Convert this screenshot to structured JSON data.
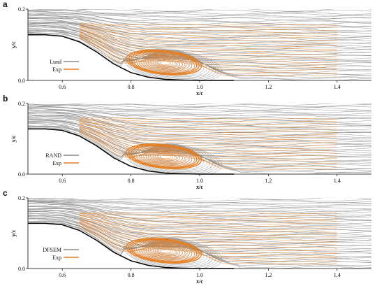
{
  "chart_data": [
    {
      "type": "line",
      "panel_label": "a",
      "xlabel": "x/c",
      "ylabel": "y/c",
      "xlim": [
        0.5,
        1.5
      ],
      "ylim": [
        0.0,
        0.2
      ],
      "xticks": [
        "0.6",
        "0.8",
        "1.0",
        "1.2",
        "1.4"
      ],
      "yticks": [
        "0.0",
        "0.2"
      ],
      "legend_position": "lower-left",
      "series": [
        {
          "name": "Lund",
          "color": "#8c8c8c"
        },
        {
          "name": "Exp",
          "color": "#e87d1e"
        }
      ],
      "hump_surface": {
        "x": [
          0.5,
          0.55,
          0.6,
          0.65,
          0.7,
          0.75,
          0.8,
          0.85,
          0.9,
          0.95,
          1.0,
          1.05,
          1.1
        ],
        "y": [
          0.128,
          0.128,
          0.124,
          0.108,
          0.08,
          0.046,
          0.022,
          0.009,
          0.003,
          0.001,
          0.0,
          0.0,
          0.0
        ]
      },
      "experiment_window": {
        "x": [
          0.65,
          1.4
        ],
        "y": [
          0.0,
          0.16
        ]
      },
      "recirculation_vortex": {
        "center_x": 0.9,
        "center_y": 0.05
      }
    },
    {
      "type": "line",
      "panel_label": "b",
      "xlabel": "x/c",
      "ylabel": "y/c",
      "xlim": [
        0.5,
        1.5
      ],
      "ylim": [
        0.0,
        0.2
      ],
      "xticks": [
        "0.6",
        "0.8",
        "1.0",
        "1.2",
        "1.4"
      ],
      "yticks": [
        "0.0",
        "0.2"
      ],
      "legend_position": "lower-left",
      "series": [
        {
          "name": "RAND",
          "color": "#8c8c8c"
        },
        {
          "name": "Exp",
          "color": "#e87d1e"
        }
      ],
      "hump_surface": {
        "x": [
          0.5,
          0.55,
          0.6,
          0.65,
          0.7,
          0.75,
          0.8,
          0.85,
          0.9,
          0.95,
          1.0,
          1.05,
          1.1
        ],
        "y": [
          0.128,
          0.128,
          0.124,
          0.108,
          0.08,
          0.046,
          0.022,
          0.009,
          0.003,
          0.001,
          0.0,
          0.0,
          0.0
        ]
      },
      "experiment_window": {
        "x": [
          0.65,
          1.4
        ],
        "y": [
          0.0,
          0.16
        ]
      },
      "recirculation_vortex": {
        "center_x": 0.9,
        "center_y": 0.05
      }
    },
    {
      "type": "line",
      "panel_label": "c",
      "xlabel": "x/c",
      "ylabel": "y/c",
      "xlim": [
        0.5,
        1.5
      ],
      "ylim": [
        0.0,
        0.2
      ],
      "xticks": [
        "0.6",
        "0.8",
        "1.0",
        "1.2",
        "1.4"
      ],
      "yticks": [
        "0.0",
        "0.2"
      ],
      "legend_position": "lower-left",
      "series": [
        {
          "name": "DFSEM",
          "color": "#8c8c8c"
        },
        {
          "name": "Exp",
          "color": "#e87d1e"
        }
      ],
      "hump_surface": {
        "x": [
          0.5,
          0.55,
          0.6,
          0.65,
          0.7,
          0.75,
          0.8,
          0.85,
          0.9,
          0.95,
          1.0,
          1.05,
          1.1
        ],
        "y": [
          0.128,
          0.128,
          0.124,
          0.108,
          0.08,
          0.046,
          0.022,
          0.009,
          0.003,
          0.001,
          0.0,
          0.0,
          0.0
        ]
      },
      "experiment_window": {
        "x": [
          0.65,
          1.4
        ],
        "y": [
          0.0,
          0.16
        ]
      },
      "recirculation_vortex": {
        "center_x": 0.9,
        "center_y": 0.05
      }
    }
  ]
}
